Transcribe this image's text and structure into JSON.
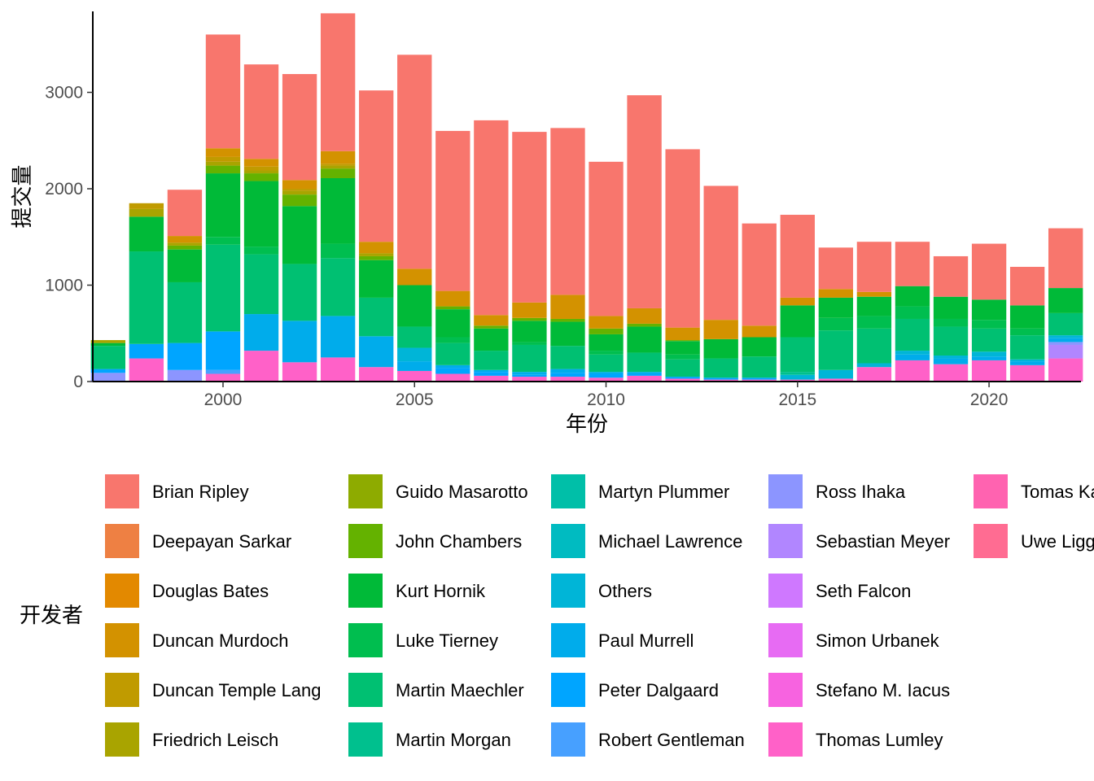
{
  "chart_data": {
    "type": "bar",
    "stacked": true,
    "xlabel": "年份",
    "ylabel": "提交量",
    "legend_title": "开发者",
    "legend_position": "bottom",
    "grid": false,
    "xlim": [
      1996.6,
      2022.4
    ],
    "ylim": [
      0,
      3840
    ],
    "x_ticks": [
      2000,
      2005,
      2010,
      2015,
      2020
    ],
    "y_ticks": [
      0,
      1000,
      2000,
      3000
    ],
    "x": [
      1997,
      1998,
      1999,
      2000,
      2001,
      2002,
      2003,
      2004,
      2005,
      2006,
      2007,
      2008,
      2009,
      2010,
      2011,
      2012,
      2013,
      2014,
      2015,
      2016,
      2017,
      2018,
      2019,
      2020,
      2021,
      2022
    ],
    "series": [
      {
        "name": "Brian Ripley",
        "color": "#F8766D",
        "values": [
          0,
          0,
          480,
          1180,
          980,
          1100,
          1430,
          1570,
          2220,
          1660,
          2020,
          1770,
          1730,
          1600,
          2210,
          1850,
          1390,
          1060,
          860,
          430,
          520,
          460,
          420,
          580,
          400,
          620
        ]
      },
      {
        "name": "Deepayan Sarkar",
        "color": "#EE8043",
        "values": [
          0,
          0,
          0,
          0,
          0,
          0,
          0,
          0,
          0,
          0,
          0,
          0,
          0,
          0,
          0,
          0,
          0,
          0,
          0,
          0,
          0,
          0,
          0,
          0,
          0,
          0
        ]
      },
      {
        "name": "Douglas Bates",
        "color": "#E38900",
        "values": [
          0,
          0,
          0,
          0,
          0,
          0,
          0,
          0,
          0,
          0,
          0,
          0,
          0,
          0,
          0,
          0,
          0,
          0,
          0,
          0,
          0,
          0,
          0,
          0,
          0,
          0
        ]
      },
      {
        "name": "Duncan Murdoch",
        "color": "#D39200",
        "values": [
          0,
          0,
          70,
          90,
          80,
          90,
          130,
          120,
          170,
          160,
          110,
          160,
          250,
          130,
          160,
          130,
          200,
          120,
          80,
          90,
          50,
          0,
          0,
          0,
          0,
          0
        ]
      },
      {
        "name": "Duncan Temple Lang",
        "color": "#C09B00",
        "values": [
          0,
          60,
          0,
          50,
          40,
          20,
          20,
          0,
          0,
          0,
          0,
          0,
          0,
          0,
          0,
          0,
          0,
          0,
          0,
          0,
          0,
          0,
          0,
          0,
          0,
          0
        ]
      },
      {
        "name": "Friedrich Leisch",
        "color": "#A9A400",
        "values": [
          30,
          80,
          30,
          40,
          30,
          40,
          30,
          30,
          0,
          0,
          0,
          0,
          0,
          0,
          0,
          0,
          0,
          0,
          0,
          0,
          0,
          0,
          0,
          0,
          0,
          0
        ]
      },
      {
        "name": "Guido Masarotto",
        "color": "#8EAB00",
        "values": [
          0,
          0,
          0,
          0,
          0,
          0,
          0,
          0,
          0,
          0,
          0,
          0,
          0,
          0,
          0,
          0,
          0,
          0,
          0,
          0,
          0,
          0,
          0,
          0,
          0,
          0
        ]
      },
      {
        "name": "John Chambers",
        "color": "#64B200",
        "values": [
          0,
          0,
          40,
          80,
          80,
          120,
          100,
          40,
          0,
          30,
          30,
          30,
          30,
          60,
          30,
          10,
          0,
          0,
          0,
          0,
          0,
          0,
          0,
          0,
          0,
          0
        ]
      },
      {
        "name": "Kurt Hornik",
        "color": "#00BA38",
        "values": [
          30,
          360,
          340,
          660,
          680,
          600,
          680,
          390,
          430,
          290,
          230,
          220,
          250,
          170,
          270,
          140,
          200,
          200,
          330,
          210,
          200,
          210,
          230,
          210,
          240,
          260
        ]
      },
      {
        "name": "Luke Tierney",
        "color": "#00BE4F",
        "values": [
          0,
          0,
          0,
          80,
          80,
          0,
          150,
          0,
          0,
          60,
          0,
          30,
          0,
          40,
          0,
          50,
          0,
          0,
          0,
          130,
          130,
          130,
          80,
          90,
          70,
          0
        ]
      },
      {
        "name": "Martin Maechler",
        "color": "#00C072",
        "values": [
          240,
          960,
          630,
          900,
          620,
          590,
          600,
          400,
          220,
          230,
          200,
          280,
          240,
          180,
          200,
          180,
          200,
          220,
          360,
          410,
          360,
          330,
          300,
          240,
          250,
          230
        ]
      },
      {
        "name": "Martin Morgan",
        "color": "#00C08E",
        "values": [
          0,
          0,
          0,
          0,
          0,
          0,
          0,
          0,
          0,
          0,
          0,
          0,
          0,
          0,
          0,
          0,
          0,
          0,
          30,
          0,
          0,
          0,
          0,
          0,
          0,
          0
        ]
      },
      {
        "name": "Martyn Plummer",
        "color": "#00BFA8",
        "values": [
          0,
          0,
          0,
          0,
          0,
          0,
          0,
          0,
          0,
          0,
          0,
          0,
          0,
          0,
          0,
          0,
          0,
          0,
          0,
          0,
          0,
          0,
          0,
          0,
          0,
          0
        ]
      },
      {
        "name": "Michael Lawrence",
        "color": "#00BBC1",
        "values": [
          0,
          0,
          0,
          0,
          0,
          0,
          0,
          0,
          0,
          0,
          0,
          0,
          0,
          0,
          0,
          0,
          0,
          0,
          0,
          0,
          0,
          0,
          0,
          0,
          0,
          0
        ]
      },
      {
        "name": "Others",
        "color": "#00B5D7",
        "values": [
          0,
          0,
          0,
          0,
          0,
          0,
          0,
          0,
          140,
          0,
          0,
          0,
          0,
          0,
          0,
          0,
          0,
          0,
          50,
          90,
          40,
          40,
          30,
          50,
          20,
          30
        ]
      },
      {
        "name": "Paul Murrell",
        "color": "#00ACEB",
        "values": [
          0,
          0,
          0,
          0,
          380,
          430,
          430,
          320,
          100,
          30,
          20,
          30,
          40,
          20,
          20,
          0,
          0,
          0,
          0,
          0,
          0,
          60,
          60,
          40,
          40,
          40
        ]
      },
      {
        "name": "Peter Dalgaard",
        "color": "#00A5FF",
        "values": [
          40,
          150,
          280,
          400,
          0,
          0,
          0,
          0,
          0,
          60,
          40,
          20,
          40,
          40,
          20,
          20,
          20,
          20,
          0,
          0,
          0,
          0,
          0,
          0,
          0,
          0
        ]
      },
      {
        "name": "Robert Gentleman",
        "color": "#47A0FF",
        "values": [
          0,
          0,
          0,
          40,
          0,
          0,
          0,
          0,
          0,
          0,
          0,
          0,
          0,
          0,
          0,
          0,
          0,
          0,
          0,
          0,
          0,
          0,
          0,
          0,
          0,
          0
        ]
      },
      {
        "name": "Ross Ihaka",
        "color": "#8C95FF",
        "values": [
          90,
          0,
          120,
          0,
          0,
          0,
          0,
          0,
          0,
          0,
          0,
          0,
          0,
          0,
          0,
          0,
          0,
          0,
          0,
          0,
          0,
          0,
          0,
          0,
          0,
          30
        ]
      },
      {
        "name": "Sebastian Meyer",
        "color": "#B186FF",
        "values": [
          0,
          0,
          0,
          0,
          0,
          0,
          0,
          0,
          0,
          0,
          0,
          0,
          0,
          0,
          0,
          0,
          0,
          0,
          0,
          0,
          0,
          0,
          0,
          0,
          0,
          140
        ]
      },
      {
        "name": "Seth Falcon",
        "color": "#CF78FF",
        "values": [
          0,
          0,
          0,
          0,
          0,
          0,
          0,
          0,
          0,
          0,
          0,
          0,
          0,
          0,
          0,
          0,
          0,
          0,
          0,
          0,
          0,
          0,
          0,
          0,
          0,
          0
        ]
      },
      {
        "name": "Simon Urbanek",
        "color": "#E76BF3",
        "values": [
          0,
          0,
          0,
          0,
          0,
          0,
          0,
          0,
          0,
          0,
          0,
          0,
          0,
          0,
          0,
          0,
          0,
          0,
          0,
          0,
          0,
          0,
          0,
          0,
          0,
          0
        ]
      },
      {
        "name": "Stefano M. Iacus",
        "color": "#F763E0",
        "values": [
          0,
          0,
          0,
          0,
          0,
          0,
          0,
          0,
          0,
          0,
          0,
          0,
          0,
          0,
          0,
          0,
          0,
          0,
          0,
          0,
          0,
          0,
          0,
          0,
          0,
          0
        ]
      },
      {
        "name": "Thomas Lumley",
        "color": "#FF61C8",
        "values": [
          0,
          240,
          0,
          80,
          320,
          200,
          250,
          150,
          110,
          80,
          60,
          50,
          50,
          40,
          60,
          30,
          20,
          20,
          20,
          30,
          150,
          220,
          180,
          220,
          170,
          240
        ]
      },
      {
        "name": "Tomas Kalibera",
        "color": "#FF63B0",
        "values": [
          0,
          0,
          0,
          0,
          0,
          0,
          0,
          0,
          0,
          0,
          0,
          0,
          0,
          0,
          0,
          0,
          0,
          0,
          0,
          0,
          0,
          0,
          0,
          0,
          0,
          0
        ]
      },
      {
        "name": "Uwe Ligges",
        "color": "#FF6C92",
        "values": [
          0,
          0,
          0,
          0,
          0,
          0,
          0,
          0,
          0,
          0,
          0,
          0,
          0,
          0,
          0,
          0,
          0,
          0,
          0,
          0,
          0,
          0,
          0,
          0,
          0,
          0
        ]
      }
    ],
    "legend_columns": [
      [
        "Brian Ripley",
        "Deepayan Sarkar",
        "Douglas Bates",
        "Duncan Murdoch",
        "Duncan Temple Lang",
        "Friedrich Leisch"
      ],
      [
        "Guido Masarotto",
        "John Chambers",
        "Kurt Hornik",
        "Luke Tierney",
        "Martin Maechler",
        "Martin Morgan"
      ],
      [
        "Martyn Plummer",
        "Michael Lawrence",
        "Others",
        "Paul Murrell",
        "Peter Dalgaard",
        "Robert Gentleman"
      ],
      [
        "Ross Ihaka",
        "Sebastian Meyer",
        "Seth Falcon",
        "Simon Urbanek",
        "Stefano M. Iacus",
        "Thomas Lumley"
      ],
      [
        "Tomas Kalibera",
        "Uwe Ligges"
      ]
    ]
  }
}
